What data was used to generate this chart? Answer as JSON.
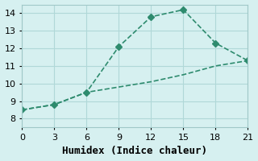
{
  "line1_x": [
    0,
    3,
    6,
    9,
    12,
    15,
    18,
    21
  ],
  "line1_y": [
    8.5,
    8.8,
    9.5,
    12.1,
    13.8,
    14.2,
    12.3,
    11.3
  ],
  "line2_x": [
    0,
    3,
    6,
    9,
    12,
    15,
    18,
    21
  ],
  "line2_y": [
    8.5,
    8.8,
    9.5,
    9.8,
    10.1,
    10.5,
    11.0,
    11.3
  ],
  "line_color": "#2e8b6e",
  "bg_color": "#d6f0f0",
  "grid_color": "#b0d8d8",
  "xlabel": "Humidex (Indice chaleur)",
  "ylabel": "",
  "xlim": [
    0,
    21
  ],
  "ylim": [
    7.5,
    14.5
  ],
  "xticks": [
    0,
    3,
    6,
    9,
    12,
    15,
    18,
    21
  ],
  "yticks": [
    8,
    9,
    10,
    11,
    12,
    13,
    14
  ],
  "xlabel_fontsize": 9,
  "tick_fontsize": 8,
  "marker": "D",
  "marker_size": 4,
  "linewidth": 1.2
}
